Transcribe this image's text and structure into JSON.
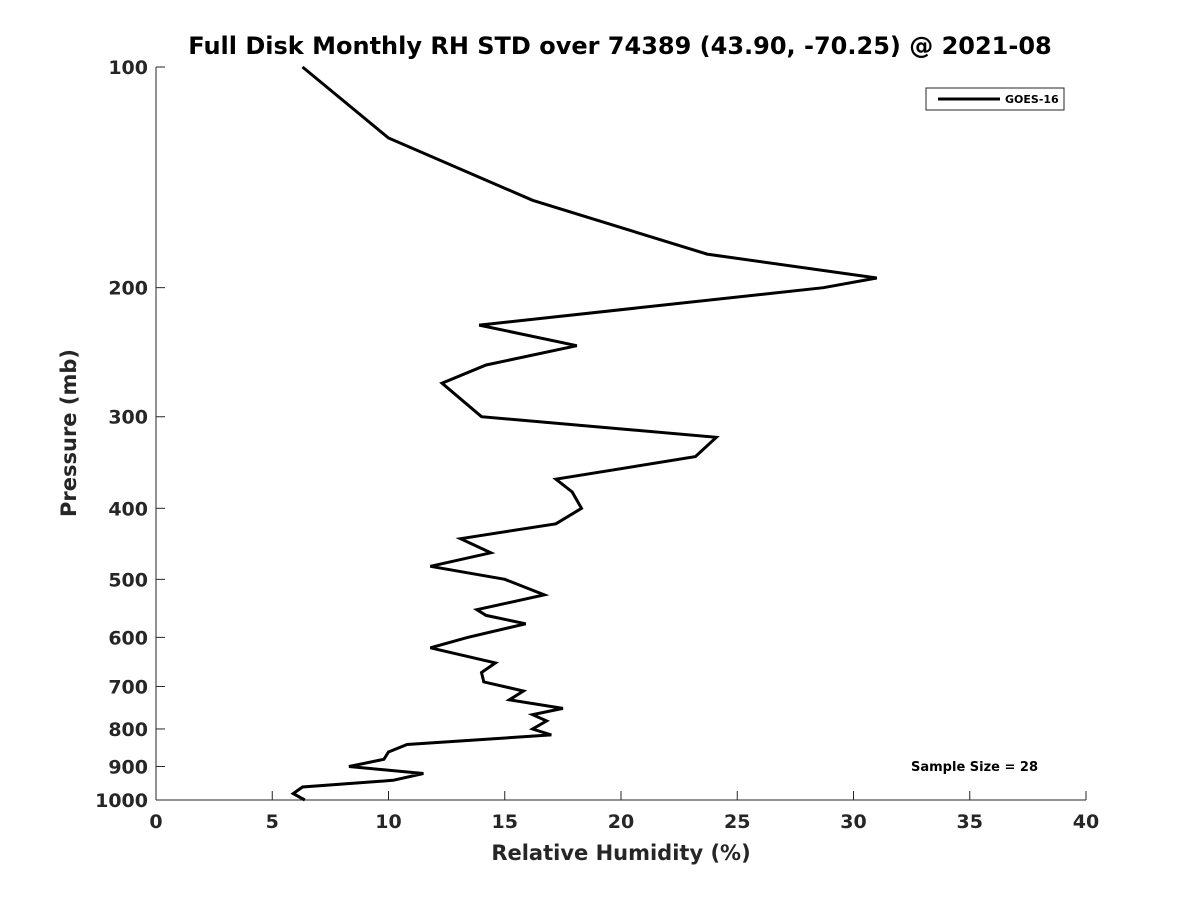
{
  "chart_data": {
    "type": "line",
    "title": "Full Disk Monthly RH STD over 74389 (43.90, -70.25) @ 2021-08",
    "xlabel": "Relative Humidity (%)",
    "ylabel": "Pressure (mb)",
    "xlim": [
      0,
      40
    ],
    "ylim": [
      100,
      1000
    ],
    "y_scale": "log",
    "y_reversed": true,
    "x_ticks": [
      "0",
      "5",
      "10",
      "15",
      "20",
      "25",
      "30",
      "35",
      "40"
    ],
    "y_ticks": [
      "100",
      "200",
      "300",
      "400",
      "500",
      "600",
      "700",
      "800",
      "900",
      "1000"
    ],
    "grid": false,
    "legend_position": "top-right",
    "series": [
      {
        "name": "GOES-16",
        "color": "#000000",
        "points": [
          [
            6.3,
            100
          ],
          [
            10.0,
            125
          ],
          [
            16.2,
            152
          ],
          [
            23.7,
            180
          ],
          [
            31.0,
            194
          ],
          [
            28.7,
            200
          ],
          [
            13.9,
            225
          ],
          [
            18.1,
            240
          ],
          [
            14.2,
            255
          ],
          [
            12.3,
            270
          ],
          [
            14.0,
            300
          ],
          [
            24.1,
            320
          ],
          [
            23.2,
            340
          ],
          [
            17.2,
            365
          ],
          [
            17.9,
            380
          ],
          [
            18.3,
            400
          ],
          [
            17.2,
            420
          ],
          [
            13.1,
            440
          ],
          [
            14.4,
            460
          ],
          [
            11.8,
            480
          ],
          [
            15.0,
            500
          ],
          [
            16.7,
            525
          ],
          [
            13.8,
            550
          ],
          [
            14.2,
            560
          ],
          [
            15.9,
            575
          ],
          [
            13.4,
            600
          ],
          [
            11.8,
            620
          ],
          [
            14.6,
            650
          ],
          [
            14.0,
            670
          ],
          [
            14.1,
            690
          ],
          [
            15.8,
            710
          ],
          [
            15.2,
            730
          ],
          [
            17.5,
            750
          ],
          [
            16.2,
            765
          ],
          [
            16.8,
            780
          ],
          [
            16.2,
            800
          ],
          [
            17.0,
            815
          ],
          [
            10.8,
            840
          ],
          [
            10.0,
            860
          ],
          [
            9.8,
            880
          ],
          [
            8.3,
            900
          ],
          [
            11.5,
            920
          ],
          [
            10.2,
            940
          ],
          [
            6.3,
            960
          ],
          [
            5.9,
            980
          ],
          [
            6.4,
            1000
          ]
        ]
      }
    ]
  },
  "annotation": "Sample Size = 28"
}
